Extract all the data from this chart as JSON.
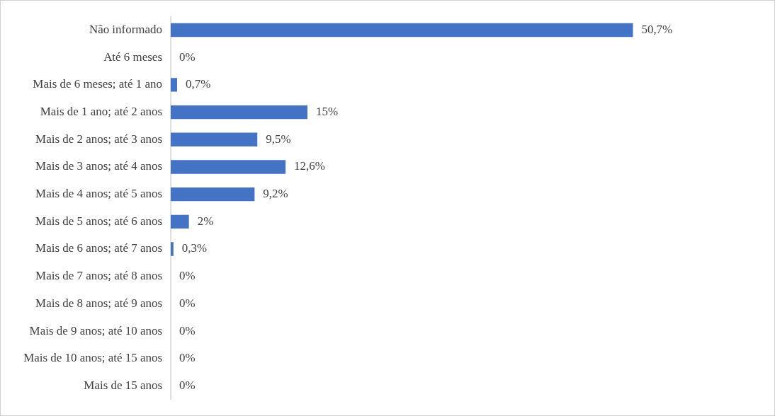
{
  "chart_data": {
    "type": "bar",
    "orientation": "horizontal",
    "categories": [
      "Não informado",
      "Até 6 meses",
      "Mais de 6 meses; até 1 ano",
      "Mais de 1 ano; até 2 anos",
      "Mais de 2 anos; até 3 anos",
      "Mais de 3 anos; até 4 anos",
      "Mais de 4 anos; até 5 anos",
      "Mais de 5 anos; até 6 anos",
      "Mais de 6 anos; até 7 anos",
      "Mais de 7 anos; até 8 anos",
      "Mais de 8 anos; até 9 anos",
      "Mais de 9 anos; até 10 anos",
      "Mais de 10 anos; até 15 anos",
      "Mais de 15 anos"
    ],
    "values": [
      50.7,
      0,
      0.7,
      15,
      9.5,
      12.6,
      9.2,
      2,
      0.3,
      0,
      0,
      0,
      0,
      0
    ],
    "value_labels": [
      "50,7%",
      "0%",
      "0,7%",
      "15%",
      "9,5%",
      "12,6%",
      "9,2%",
      "2%",
      "0,3%",
      "0%",
      "0%",
      "0%",
      "0%",
      "0%"
    ],
    "color": "#4472c4",
    "legend": false
  }
}
